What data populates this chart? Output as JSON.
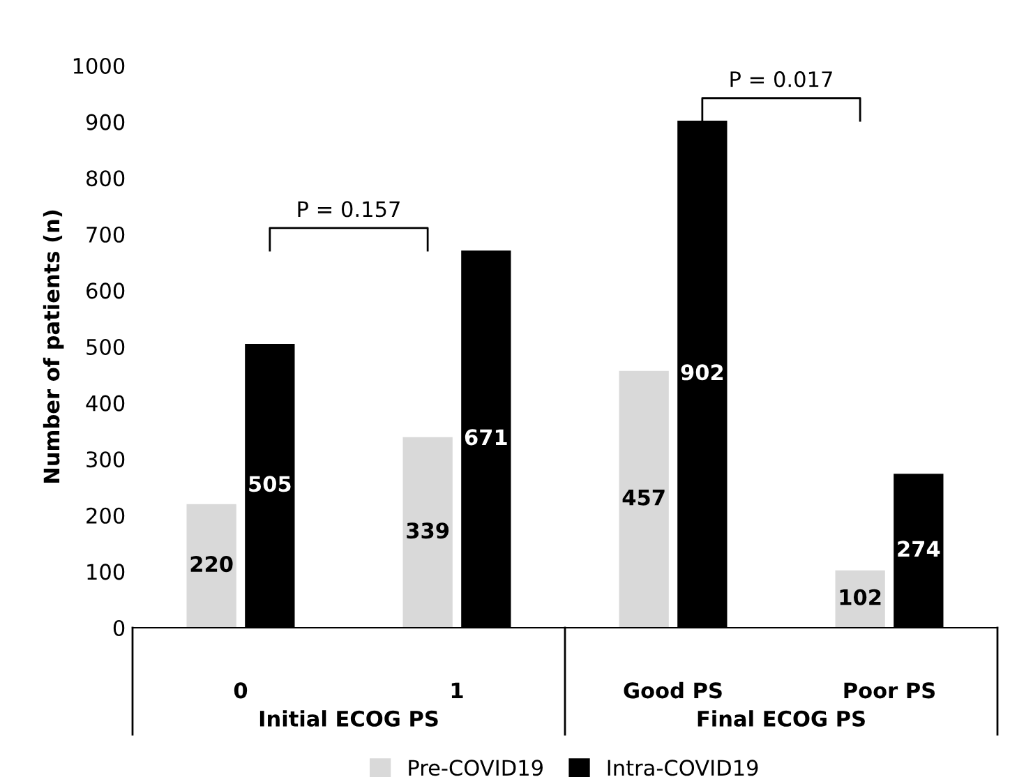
{
  "chart_data": {
    "type": "bar",
    "ylabel": "Number of patients (n)",
    "categories": [
      "0",
      "1",
      "Good PS",
      "Poor PS"
    ],
    "series": [
      {
        "name": "Pre-COVID19",
        "color": "#d9d9d9",
        "values": [
          220,
          339,
          457,
          102
        ]
      },
      {
        "name": "Intra-COVID19",
        "color": "#000000",
        "values": [
          505,
          671,
          902,
          274
        ]
      }
    ],
    "ylim": [
      0,
      1000
    ],
    "yticks": [
      0,
      100,
      200,
      300,
      400,
      500,
      600,
      700,
      800,
      900,
      1000
    ],
    "grid": false,
    "legend": "bottom",
    "data_labels": true,
    "annotations": [
      "P = 0.157",
      "P = 0.017",
      "Initial ECOG PS",
      "Final ECOG PS"
    ]
  }
}
